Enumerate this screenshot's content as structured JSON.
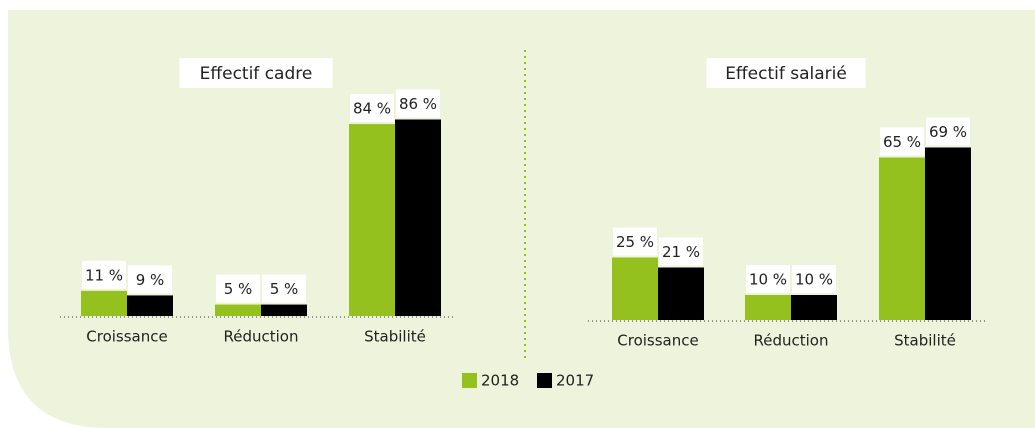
{
  "chart_data": [
    {
      "type": "bar",
      "title": "Effectif cadre",
      "categories": [
        "Croissance",
        "Réduction",
        "Stabilité"
      ],
      "series": [
        {
          "name": "2018",
          "color": "#95c11f",
          "values": [
            11,
            5,
            84
          ],
          "value_labels": [
            "11 %",
            "5 %",
            "84 %"
          ]
        },
        {
          "name": "2017",
          "color": "#000000",
          "values": [
            9,
            5,
            86
          ],
          "value_labels": [
            "9 %",
            "5 %",
            "86 %"
          ]
        }
      ]
    },
    {
      "type": "bar",
      "title": "Effectif salarié",
      "categories": [
        "Croissance",
        "Réduction",
        "Stabilité"
      ],
      "series": [
        {
          "color": "#95c11f",
          "values": [
            25,
            10,
            65
          ],
          "value_labels": [
            "25 %",
            "10 %",
            "65 %"
          ]
        },
        {
          "color": "#000000",
          "values": [
            21,
            10,
            69
          ],
          "value_labels": [
            "21 %",
            "10 %",
            "69 %"
          ]
        }
      ]
    }
  ]
}
